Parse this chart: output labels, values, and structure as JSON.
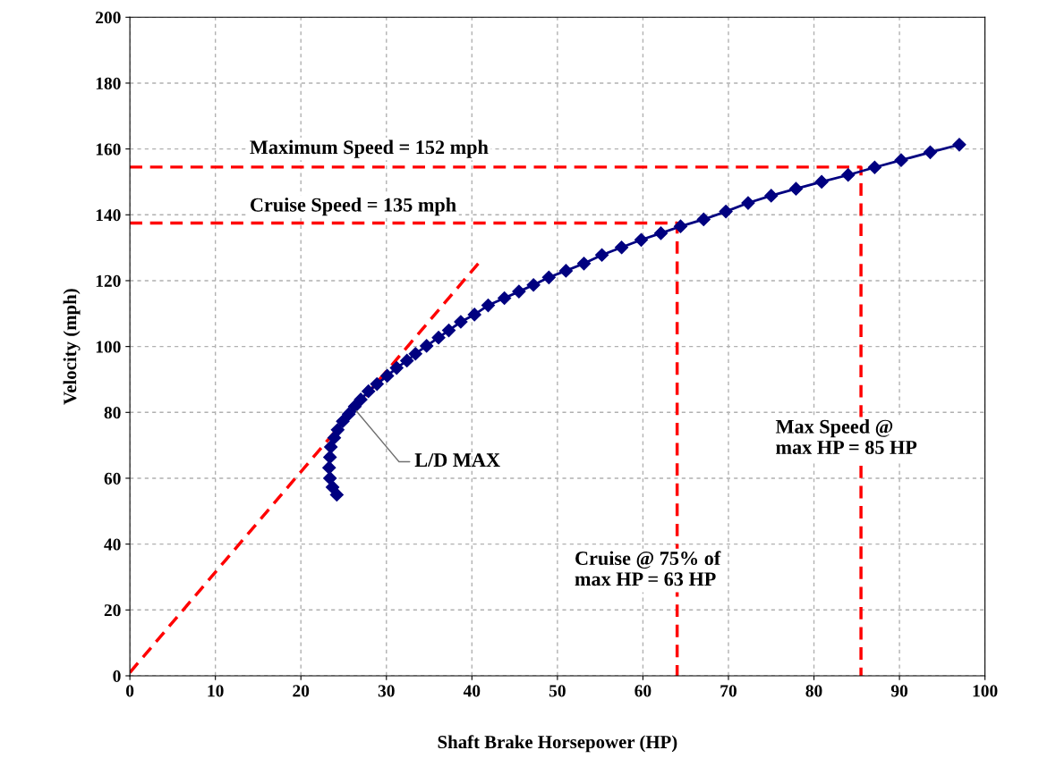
{
  "chart_data": {
    "type": "line",
    "xlabel": "Shaft Brake Horsepower (HP)",
    "ylabel": "Velocity (mph)",
    "xlim": [
      0,
      100
    ],
    "ylim": [
      0,
      200
    ],
    "xticks": [
      0,
      10,
      20,
      30,
      40,
      50,
      60,
      70,
      80,
      90,
      100
    ],
    "yticks": [
      0,
      20,
      40,
      60,
      80,
      100,
      120,
      140,
      160,
      180,
      200
    ],
    "grid": true,
    "legend": false,
    "series": [
      {
        "color": "#000080",
        "marker": "diamond",
        "line_style": "solid",
        "x": [
          24.2,
          23.7,
          23.4,
          23.3,
          23.4,
          23.5,
          23.9,
          24.3,
          24.9,
          25.6,
          26.3,
          27.0,
          27.9,
          28.9,
          30.1,
          31.2,
          32.4,
          33.4,
          34.7,
          36.1,
          37.3,
          38.7,
          40.3,
          41.9,
          43.8,
          45.5,
          47.2,
          49.0,
          51.0,
          53.1,
          55.2,
          57.5,
          59.8,
          62.1,
          64.4,
          67.1,
          69.7,
          72.3,
          75.0,
          77.9,
          80.9,
          84.0,
          87.1,
          90.2,
          93.6,
          97.0
        ],
        "values": [
          55,
          57.3,
          60,
          63.2,
          66.4,
          69.5,
          72.3,
          74.7,
          77.3,
          79.5,
          81.8,
          83.9,
          86.4,
          88.6,
          91.1,
          93.5,
          95.7,
          97.8,
          100.2,
          102.7,
          104.9,
          107.5,
          109.7,
          112.5,
          114.7,
          116.7,
          118.7,
          121.0,
          123.0,
          125.2,
          127.8,
          130.1,
          132.4,
          134.4,
          136.5,
          138.6,
          141.0,
          143.6,
          145.8,
          147.9,
          150.0,
          152.1,
          154.4,
          156.6,
          159.0,
          161.3
        ]
      },
      {
        "color": "#ff0000",
        "marker": "none",
        "line_style": "dashed",
        "x": [
          0,
          41
        ],
        "values": [
          1,
          126
        ]
      },
      {
        "color": "#ff0000",
        "marker": "none",
        "line_style": "dashed",
        "x": [
          0,
          85.5,
          85.5
        ],
        "values": [
          154.5,
          154.5,
          0
        ]
      },
      {
        "color": "#ff0000",
        "marker": "none",
        "line_style": "dashed",
        "x": [
          0,
          64,
          64
        ],
        "values": [
          137.5,
          137.5,
          0
        ]
      }
    ],
    "annotations": [
      "Maximum Speed = 152 mph",
      "Cruise Speed = 135 mph",
      "Max Speed @\nmax HP = 85 HP",
      "Cruise @ 75% of\nmax HP = 63 HP",
      {
        "text": "L/D MAX",
        "x": 26.3,
        "y": 81
      }
    ]
  }
}
